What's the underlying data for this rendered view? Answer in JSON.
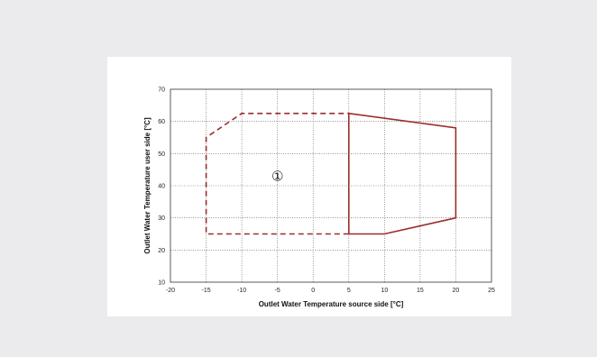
{
  "chart_data": {
    "type": "line",
    "xlabel": "Outlet Water Temperature source side [°C]",
    "ylabel": "Outlet Water Temperature user  side [°C]",
    "xlim": [
      -20,
      25
    ],
    "ylim": [
      10,
      70
    ],
    "xticks": [
      -20,
      -15,
      -10,
      -5,
      0,
      5,
      10,
      15,
      20,
      25
    ],
    "yticks": [
      10,
      20,
      30,
      40,
      50,
      60,
      70
    ],
    "grid": true,
    "grid_style": "dotted",
    "annotation": {
      "text": "①",
      "x": -5,
      "y": 43
    },
    "series": [
      {
        "style": "dashed",
        "color": "#9b2d2d",
        "points": [
          [
            5,
            25
          ],
          [
            -15,
            25
          ],
          [
            -15,
            55
          ],
          [
            -10,
            62.5
          ],
          [
            5,
            62.5
          ]
        ]
      },
      {
        "style": "solid",
        "color": "#9b2d2d",
        "points": [
          [
            5,
            62.5
          ],
          [
            20,
            58
          ],
          [
            20,
            30
          ],
          [
            10,
            25
          ],
          [
            5,
            25
          ],
          [
            5,
            62.5
          ]
        ]
      }
    ]
  }
}
